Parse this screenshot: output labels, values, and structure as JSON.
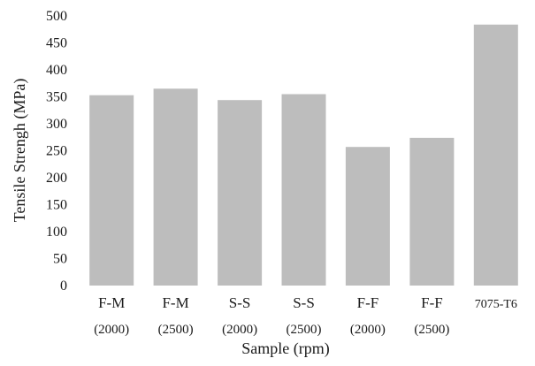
{
  "chart_data": {
    "type": "bar",
    "title": "",
    "xlabel": "Sample (rpm)",
    "ylabel": "Tensile Strengh (MPa)",
    "ylim": [
      0,
      500
    ],
    "yticks": [
      "0",
      "50",
      "100",
      "150",
      "200",
      "250",
      "300",
      "350",
      "400",
      "450",
      "500"
    ],
    "grid": false,
    "legend": "none",
    "bar_color": "#bdbdbd",
    "categories": [
      {
        "line1": "F-M",
        "line2": "(2000)"
      },
      {
        "line1": "F-M",
        "line2": "(2500)"
      },
      {
        "line1": "S-S",
        "line2": "(2000)"
      },
      {
        "line1": "S-S",
        "line2": "(2500)"
      },
      {
        "line1": "F-F",
        "line2": "(2000)"
      },
      {
        "line1": "F-F",
        "line2": "(2500)"
      },
      {
        "line1": "7075-T6",
        "line2": ""
      }
    ],
    "values": [
      353,
      365,
      344,
      355,
      257,
      274,
      484
    ]
  }
}
